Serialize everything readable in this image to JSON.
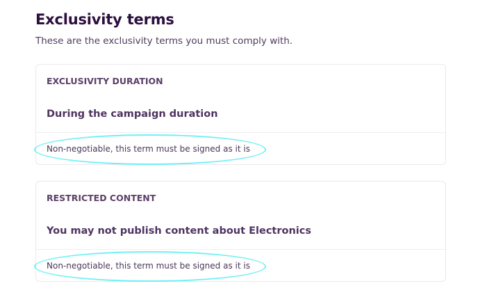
{
  "header": {
    "title": "Exclusivity terms",
    "subtitle": "These are the exclusivity terms you must comply with."
  },
  "terms": [
    {
      "label": "EXCLUSIVITY DURATION",
      "value": "During the campaign duration",
      "note": "Non-negotiable, this term must be signed as it is"
    },
    {
      "label": "RESTRICTED CONTENT",
      "value": "You may not publish content about Electronics",
      "note": "Non-negotiable, this term must be signed as it is"
    }
  ],
  "colors": {
    "highlight": "#6ff0f4",
    "title": "#2b0f3d",
    "text": "#4e3460"
  }
}
